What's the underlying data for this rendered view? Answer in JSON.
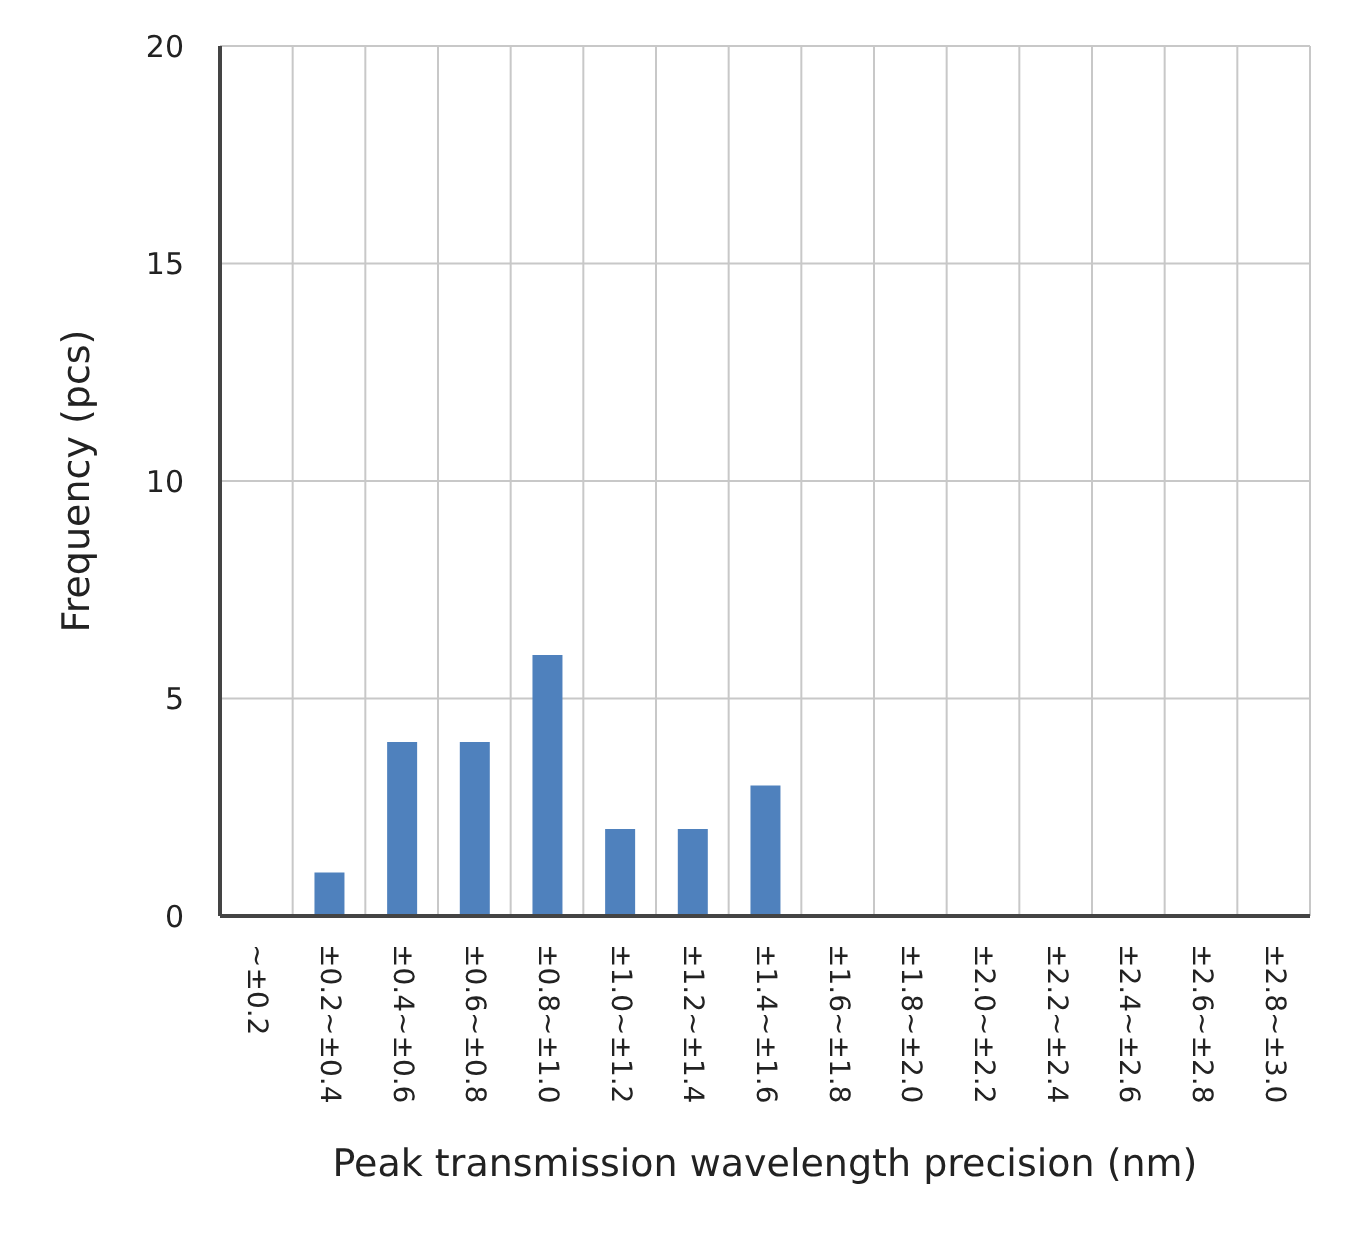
{
  "chart_data": {
    "type": "bar",
    "xlabel": "Peak transmission wavelength precision (nm)",
    "ylabel": "Frequency (pcs)",
    "categories": [
      "~±0.2",
      "±0.2~±0.4",
      "±0.4~±0.6",
      "±0.6~±0.8",
      "±0.8~±1.0",
      "±1.0~±1.2",
      "±1.2~±1.4",
      "±1.4~±1.6",
      "±1.6~±1.8",
      "±1.8~±2.0",
      "±2.0~±2.2",
      "±2.2~±2.4",
      "±2.4~±2.6",
      "±2.6~±2.8",
      "±2.8~±3.0"
    ],
    "values": [
      0,
      1,
      4,
      4,
      6,
      2,
      2,
      3,
      0,
      0,
      0,
      0,
      0,
      0,
      0
    ],
    "color": "#4f81bd",
    "ylim": [
      0,
      20
    ],
    "yticks": [
      0,
      5,
      10,
      15,
      20
    ],
    "grid": true
  }
}
